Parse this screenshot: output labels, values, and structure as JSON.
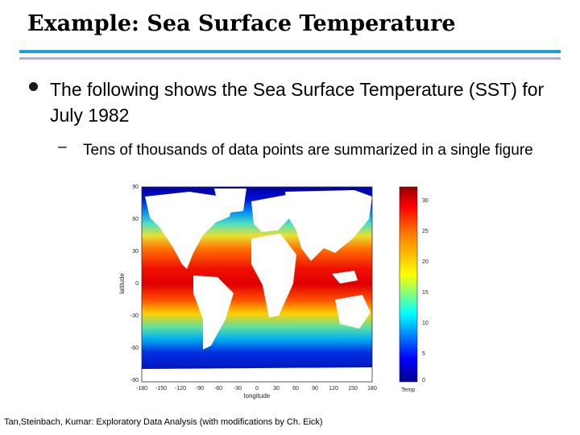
{
  "slide": {
    "title": "Example: Sea Surface Temperature",
    "bullet": "The following shows the Sea Surface Temperature (SST) for July 1982",
    "sub_bullet_marker": "–",
    "sub_bullet": "Tens of thousands of data points are summarized in a single figure",
    "citation": "Tan,Steinbach, Kumar: Exploratory Data Analysis (with modifications by Ch. Eick)"
  },
  "colors": {
    "rule_top": "#1f9fd9",
    "rule_bottom": "#b0b0c8",
    "bullet": "#1a1a1a"
  },
  "chart_data": {
    "type": "heatmap",
    "xlabel": "longitude",
    "ylabel": "latitude",
    "xlim": [
      -180,
      180
    ],
    "ylim": [
      -90,
      90
    ],
    "xticks": [
      "-180",
      "-150",
      "-120",
      "-90",
      "-60",
      "-30",
      "0",
      "30",
      "60",
      "90",
      "120",
      "150",
      "180"
    ],
    "yticks": [
      "90",
      "60",
      "30",
      "0",
      "-30",
      "-60",
      "-90"
    ],
    "colorbar": {
      "label": "Temp",
      "min": 0,
      "max": 32,
      "ticks": [
        "30",
        "25",
        "20",
        "15",
        "10",
        "5",
        "0"
      ]
    }
  }
}
